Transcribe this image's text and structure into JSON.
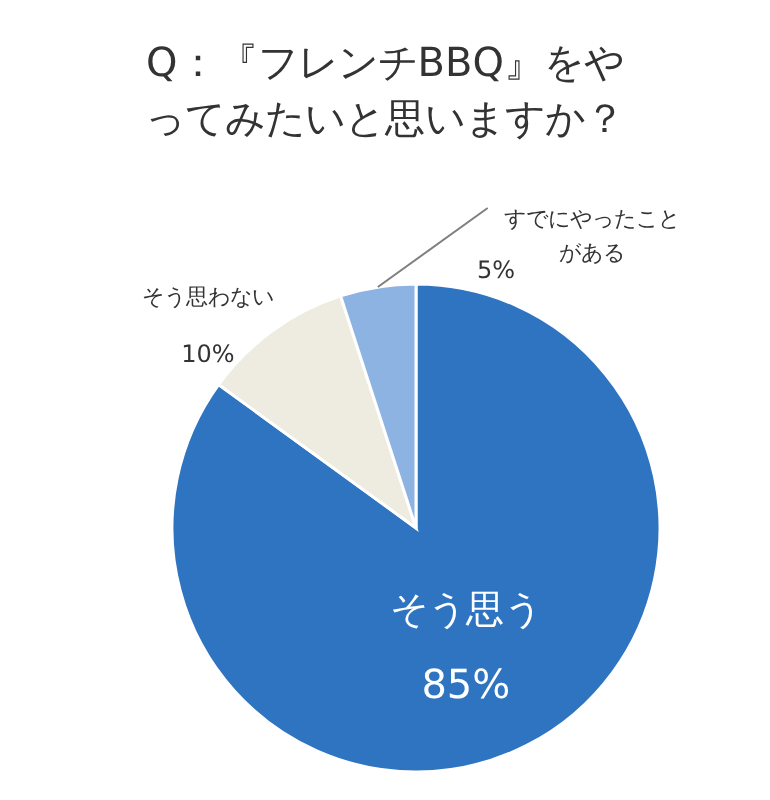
{
  "chart_data": {
    "type": "pie",
    "title": "Q：『フレンチBBQ』をやってみたいと思いますか？",
    "categories": [
      "そう思う",
      "そう思わない",
      "すでにやったことがある"
    ],
    "values": [
      85,
      10,
      5
    ],
    "colors": [
      "#2e74c0",
      "#eeece1",
      "#8db3e2"
    ],
    "value_labels": [
      "85%",
      "10%",
      "5%"
    ]
  }
}
